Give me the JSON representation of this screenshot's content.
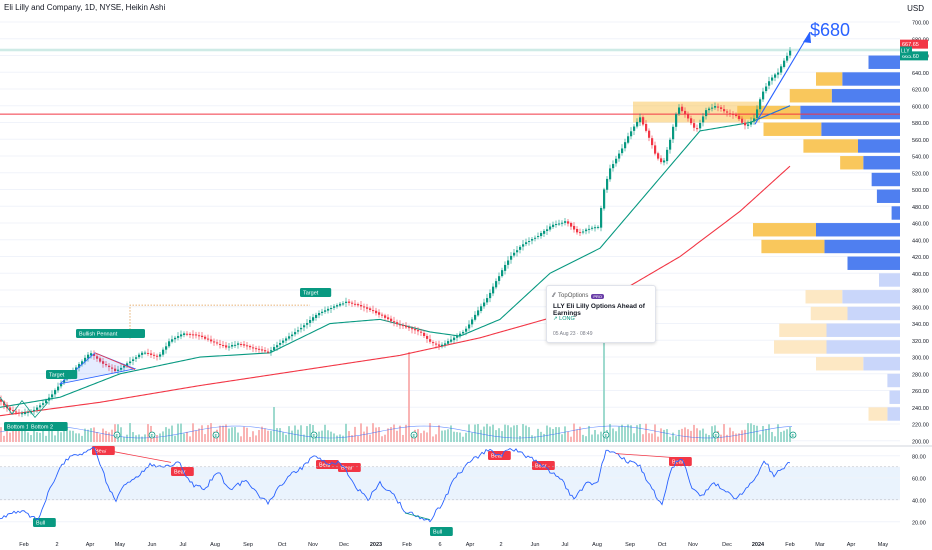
{
  "header": {
    "title": "Eli Lilly and Company, 1D, NYSE, Heikin Ashi",
    "currency": "USD"
  },
  "price_labels": {
    "price_top": "667.65",
    "price_bottom": "665.60",
    "ticker": "LLY"
  },
  "annotations": {
    "target_price": "$680",
    "bullish_pennant": "Bullish Pennant",
    "target_1": "Target",
    "target_2": "Target",
    "bottom_1": "Bottom 1",
    "bottom_2": "Bottom 2",
    "bull_1": "Bull",
    "bull_2": "Bull",
    "bear_labels": [
      "Bear",
      "Bear",
      "Bear",
      "Bear",
      "Bear",
      "Bear",
      "Bear"
    ],
    "earnings_marker": "E"
  },
  "idea_card": {
    "brand": "TopOptions",
    "badge": "PRO",
    "title": "LLY Eli Lilly Options Ahead of Earnings",
    "direction": "LONG",
    "timestamp": "05 Aug 23 · 08:49"
  },
  "colors": {
    "up": "#089981",
    "down": "#f23645",
    "ma_fast": "#089981",
    "ma_slow": "#f23645",
    "rsi": "#2962ff",
    "vp_up": "#4f7ff0",
    "vp_down": "#f9c75c",
    "trend_line": "#2962ff"
  },
  "chart_data": [
    {
      "type": "candlestick",
      "title": "Eli Lilly and Company, 1D, NYSE, Heikin Ashi",
      "x_ticks": [
        "Feb",
        "2",
        "Apr",
        "May",
        "Jun",
        "Jul",
        "Aug",
        "Sep",
        "Oct",
        "Nov",
        "Dec",
        "2023",
        "Feb",
        "6",
        "Apr",
        "2",
        "Jun",
        "Jul",
        "Aug",
        "Sep",
        "Oct",
        "Nov",
        "Dec",
        "2024",
        "Feb",
        "Mar",
        "Apr",
        "May"
      ],
      "y_ticks": [
        200,
        220,
        240,
        260,
        280,
        300,
        320,
        340,
        360,
        380,
        400,
        420,
        440,
        460,
        480,
        500,
        520,
        540,
        560,
        580,
        600,
        620,
        640,
        660,
        680,
        700
      ],
      "ylim": [
        195,
        712
      ],
      "close_series": [
        {
          "t": 0,
          "v": 250
        },
        {
          "t": 10,
          "v": 238
        },
        {
          "t": 22,
          "v": 232
        },
        {
          "t": 35,
          "v": 236
        },
        {
          "t": 50,
          "v": 250
        },
        {
          "t": 65,
          "v": 272
        },
        {
          "t": 80,
          "v": 290
        },
        {
          "t": 92,
          "v": 305
        },
        {
          "t": 105,
          "v": 292
        },
        {
          "t": 118,
          "v": 283
        },
        {
          "t": 132,
          "v": 295
        },
        {
          "t": 145,
          "v": 306
        },
        {
          "t": 160,
          "v": 300
        },
        {
          "t": 172,
          "v": 320
        },
        {
          "t": 185,
          "v": 328
        },
        {
          "t": 200,
          "v": 326
        },
        {
          "t": 215,
          "v": 318
        },
        {
          "t": 228,
          "v": 312
        },
        {
          "t": 240,
          "v": 316
        },
        {
          "t": 255,
          "v": 311
        },
        {
          "t": 270,
          "v": 306
        },
        {
          "t": 283,
          "v": 318
        },
        {
          "t": 295,
          "v": 328
        },
        {
          "t": 308,
          "v": 340
        },
        {
          "t": 320,
          "v": 352
        },
        {
          "t": 335,
          "v": 360
        },
        {
          "t": 348,
          "v": 366
        },
        {
          "t": 360,
          "v": 362
        },
        {
          "t": 373,
          "v": 356
        },
        {
          "t": 386,
          "v": 348
        },
        {
          "t": 398,
          "v": 340
        },
        {
          "t": 410,
          "v": 335
        },
        {
          "t": 422,
          "v": 330
        },
        {
          "t": 432,
          "v": 318
        },
        {
          "t": 442,
          "v": 313
        },
        {
          "t": 455,
          "v": 322
        },
        {
          "t": 467,
          "v": 332
        },
        {
          "t": 478,
          "v": 352
        },
        {
          "t": 490,
          "v": 372
        },
        {
          "t": 500,
          "v": 395
        },
        {
          "t": 512,
          "v": 420
        },
        {
          "t": 525,
          "v": 435
        },
        {
          "t": 540,
          "v": 445
        },
        {
          "t": 555,
          "v": 458
        },
        {
          "t": 568,
          "v": 462
        },
        {
          "t": 580,
          "v": 448
        },
        {
          "t": 592,
          "v": 454
        },
        {
          "t": 600,
          "v": 455
        },
        {
          "t": 606,
          "v": 500
        },
        {
          "t": 612,
          "v": 525
        },
        {
          "t": 622,
          "v": 545
        },
        {
          "t": 633,
          "v": 570
        },
        {
          "t": 642,
          "v": 586
        },
        {
          "t": 650,
          "v": 565
        },
        {
          "t": 658,
          "v": 540
        },
        {
          "t": 665,
          "v": 530
        },
        {
          "t": 672,
          "v": 560
        },
        {
          "t": 680,
          "v": 600
        },
        {
          "t": 690,
          "v": 585
        },
        {
          "t": 698,
          "v": 570
        },
        {
          "t": 708,
          "v": 595
        },
        {
          "t": 718,
          "v": 600
        },
        {
          "t": 728,
          "v": 592
        },
        {
          "t": 738,
          "v": 588
        },
        {
          "t": 748,
          "v": 575
        },
        {
          "t": 756,
          "v": 585
        },
        {
          "t": 764,
          "v": 615
        },
        {
          "t": 772,
          "v": 632
        },
        {
          "t": 780,
          "v": 640
        },
        {
          "t": 788,
          "v": 658
        },
        {
          "t": 792,
          "v": 666
        }
      ],
      "ma_fast_series": [
        {
          "t": 0,
          "v": 240
        },
        {
          "t": 60,
          "v": 252
        },
        {
          "t": 120,
          "v": 280
        },
        {
          "t": 200,
          "v": 300
        },
        {
          "t": 270,
          "v": 305
        },
        {
          "t": 330,
          "v": 340
        },
        {
          "t": 380,
          "v": 345
        },
        {
          "t": 430,
          "v": 330
        },
        {
          "t": 460,
          "v": 325
        },
        {
          "t": 500,
          "v": 345
        },
        {
          "t": 550,
          "v": 400
        },
        {
          "t": 600,
          "v": 430
        },
        {
          "t": 650,
          "v": 500
        },
        {
          "t": 700,
          "v": 570
        },
        {
          "t": 750,
          "v": 580
        },
        {
          "t": 790,
          "v": 600
        }
      ],
      "ma_slow_series": [
        {
          "t": 0,
          "v": 230
        },
        {
          "t": 100,
          "v": 246
        },
        {
          "t": 200,
          "v": 266
        },
        {
          "t": 300,
          "v": 284
        },
        {
          "t": 400,
          "v": 302
        },
        {
          "t": 480,
          "v": 323
        },
        {
          "t": 560,
          "v": 350
        },
        {
          "t": 620,
          "v": 378
        },
        {
          "t": 680,
          "v": 420
        },
        {
          "t": 740,
          "v": 474
        },
        {
          "t": 790,
          "v": 528
        }
      ],
      "volume_profile": [
        {
          "price": 650,
          "up": 30,
          "down": 0
        },
        {
          "price": 630,
          "up": 55,
          "down": 25
        },
        {
          "price": 610,
          "up": 65,
          "down": 40
        },
        {
          "price": 590,
          "up": 95,
          "down": 60
        },
        {
          "price": 570,
          "up": 75,
          "down": 55
        },
        {
          "price": 550,
          "up": 40,
          "down": 52
        },
        {
          "price": 530,
          "up": 35,
          "down": 22
        },
        {
          "price": 510,
          "up": 27,
          "down": 0
        },
        {
          "price": 490,
          "up": 22,
          "down": 0
        },
        {
          "price": 470,
          "up": 8,
          "down": 0
        },
        {
          "price": 450,
          "up": 80,
          "down": 60
        },
        {
          "price": 430,
          "up": 72,
          "down": 60
        },
        {
          "price": 410,
          "up": 50,
          "down": 0
        },
        {
          "price": 390,
          "up": 20,
          "down": 0
        },
        {
          "price": 370,
          "up": 55,
          "down": 35
        },
        {
          "price": 350,
          "up": 50,
          "down": 35
        },
        {
          "price": 330,
          "up": 70,
          "down": 45
        },
        {
          "price": 310,
          "up": 70,
          "down": 50
        },
        {
          "price": 290,
          "up": 35,
          "down": 45
        },
        {
          "price": 270,
          "up": 12,
          "down": 0
        },
        {
          "price": 250,
          "up": 10,
          "down": 0
        },
        {
          "price": 230,
          "up": 12,
          "down": 18
        }
      ],
      "levels": [
        {
          "price": 590
        }
      ],
      "reference_lines": [
        {
          "price": 667.65
        },
        {
          "price": 665.6
        }
      ]
    },
    {
      "type": "line",
      "title": "",
      "y_ticks": [
        20.0,
        40.0,
        60.0,
        80.0
      ],
      "ylim": [
        8,
        88
      ],
      "band": [
        40,
        70
      ],
      "series": [
        {
          "values": [
            {
              "t": 0,
              "v": 22
            },
            {
              "t": 20,
              "v": 30
            },
            {
              "t": 38,
              "v": 22
            },
            {
              "t": 50,
              "v": 50
            },
            {
              "t": 60,
              "v": 70
            },
            {
              "t": 70,
              "v": 80
            },
            {
              "t": 82,
              "v": 82
            },
            {
              "t": 95,
              "v": 87
            },
            {
              "t": 105,
              "v": 60
            },
            {
              "t": 115,
              "v": 38
            },
            {
              "t": 125,
              "v": 55
            },
            {
              "t": 138,
              "v": 62
            },
            {
              "t": 150,
              "v": 72
            },
            {
              "t": 165,
              "v": 70
            },
            {
              "t": 178,
              "v": 75
            },
            {
              "t": 190,
              "v": 55
            },
            {
              "t": 205,
              "v": 50
            },
            {
              "t": 218,
              "v": 66
            },
            {
              "t": 230,
              "v": 48
            },
            {
              "t": 245,
              "v": 58
            },
            {
              "t": 258,
              "v": 45
            },
            {
              "t": 268,
              "v": 38
            },
            {
              "t": 278,
              "v": 50
            },
            {
              "t": 290,
              "v": 62
            },
            {
              "t": 303,
              "v": 70
            },
            {
              "t": 315,
              "v": 80
            },
            {
              "t": 328,
              "v": 72
            },
            {
              "t": 340,
              "v": 75
            },
            {
              "t": 355,
              "v": 52
            },
            {
              "t": 368,
              "v": 40
            },
            {
              "t": 380,
              "v": 55
            },
            {
              "t": 393,
              "v": 45
            },
            {
              "t": 405,
              "v": 30
            },
            {
              "t": 418,
              "v": 24
            },
            {
              "t": 430,
              "v": 22
            },
            {
              "t": 442,
              "v": 36
            },
            {
              "t": 455,
              "v": 60
            },
            {
              "t": 465,
              "v": 70
            },
            {
              "t": 475,
              "v": 78
            },
            {
              "t": 488,
              "v": 85
            },
            {
              "t": 500,
              "v": 80
            },
            {
              "t": 512,
              "v": 87
            },
            {
              "t": 525,
              "v": 80
            },
            {
              "t": 537,
              "v": 76
            },
            {
              "t": 550,
              "v": 65
            },
            {
              "t": 562,
              "v": 58
            },
            {
              "t": 574,
              "v": 40
            },
            {
              "t": 586,
              "v": 55
            },
            {
              "t": 597,
              "v": 55
            },
            {
              "t": 606,
              "v": 85
            },
            {
              "t": 616,
              "v": 82
            },
            {
              "t": 628,
              "v": 75
            },
            {
              "t": 640,
              "v": 70
            },
            {
              "t": 652,
              "v": 50
            },
            {
              "t": 662,
              "v": 35
            },
            {
              "t": 672,
              "v": 70
            },
            {
              "t": 682,
              "v": 78
            },
            {
              "t": 692,
              "v": 50
            },
            {
              "t": 702,
              "v": 44
            },
            {
              "t": 712,
              "v": 55
            },
            {
              "t": 724,
              "v": 50
            },
            {
              "t": 735,
              "v": 42
            },
            {
              "t": 745,
              "v": 48
            },
            {
              "t": 755,
              "v": 58
            },
            {
              "t": 765,
              "v": 76
            },
            {
              "t": 773,
              "v": 62
            },
            {
              "t": 781,
              "v": 68
            },
            {
              "t": 790,
              "v": 74
            }
          ]
        }
      ]
    }
  ]
}
